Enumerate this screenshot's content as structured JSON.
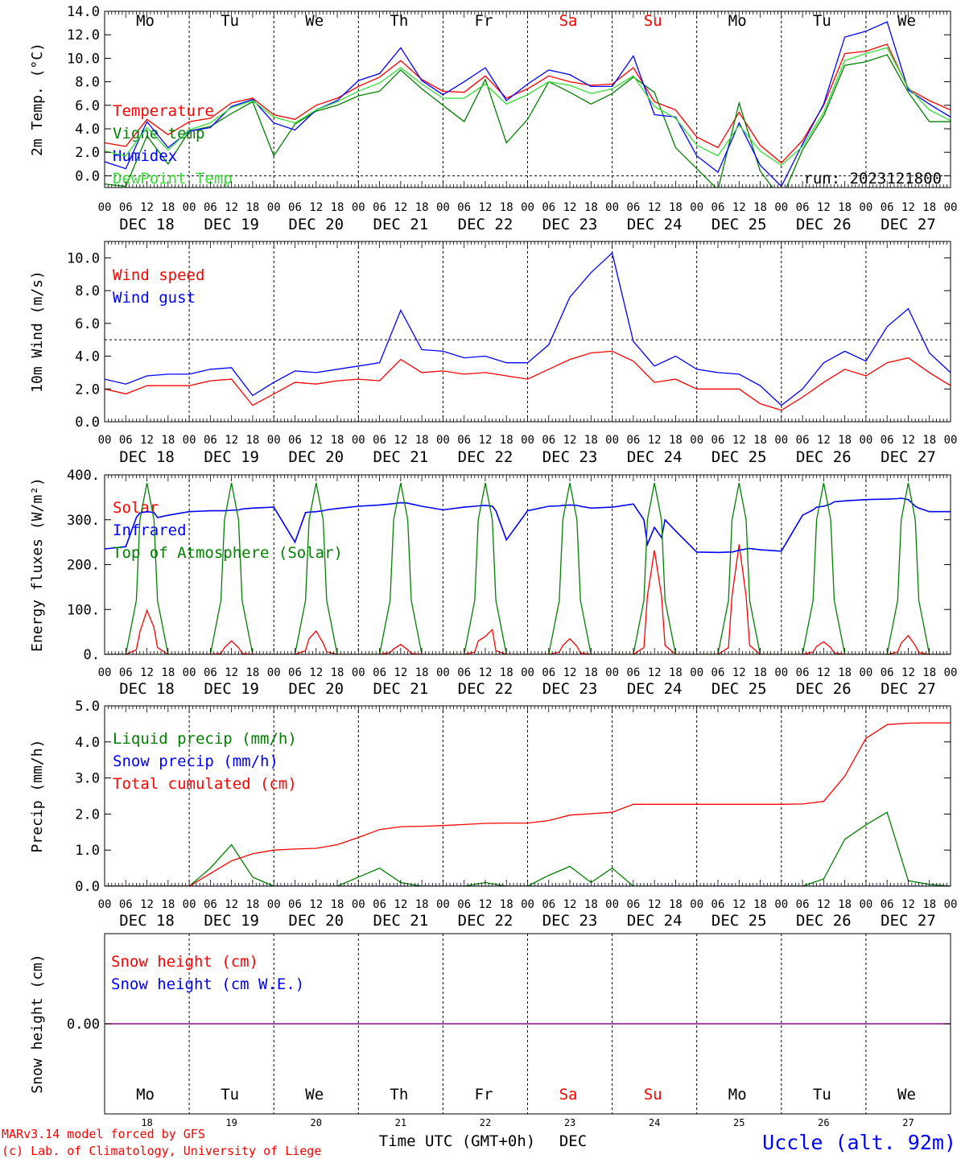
{
  "time_axis": {
    "hour_labels": [
      "00",
      "06",
      "12",
      "18",
      "00",
      "06",
      "12",
      "18",
      "00",
      "06",
      "12",
      "18",
      "00",
      "06",
      "12",
      "18",
      "00",
      "06",
      "12",
      "18",
      "00",
      "06",
      "12",
      "18",
      "00",
      "06",
      "12",
      "18",
      "00",
      "06",
      "12",
      "18",
      "00",
      "06",
      "12",
      "18",
      "00",
      "06",
      "12",
      "18",
      "00"
    ],
    "day_labels": [
      "DEC 18",
      "DEC 19",
      "DEC 20",
      "DEC 21",
      "DEC 22",
      "DEC 23",
      "DEC 24",
      "DEC 25",
      "DEC 26",
      "DEC 27"
    ],
    "weekdays": [
      "Mo",
      "Tu",
      "We",
      "Th",
      "Fr",
      "Sa",
      "Su",
      "Mo",
      "Tu",
      "We"
    ],
    "weekday_colors": [
      "#000000",
      "#000000",
      "#000000",
      "#000000",
      "#000000",
      "#ff0000",
      "#ff0000",
      "#000000",
      "#000000",
      "#000000"
    ],
    "day_numbers": [
      "18",
      "19",
      "20",
      "21",
      "22",
      "23",
      "24",
      "25",
      "26",
      "27"
    ],
    "xlabel": "Time UTC (GMT+0h)",
    "month": "DEC"
  },
  "run_label": "run: 2023121800",
  "footer": {
    "credit_1": "MARv3.14 model forced by GFS",
    "credit_2": "(c) Lab. of Climatology, University of Liege",
    "station": "Uccle (alt. 92m)"
  },
  "colors": {
    "red": "#ff0000",
    "green": "#008000",
    "blue": "#0000ff",
    "lightgreen": "#33dd33",
    "purple": "#800080"
  },
  "chart_data": [
    {
      "type": "line",
      "ylabel": "2m Temp. (°C)",
      "ylim": [
        -1,
        14
      ],
      "yticks": [
        "14.0",
        "12.0",
        "10.0",
        "8.0",
        "6.0",
        "4.0",
        "2.0",
        "0.0"
      ],
      "ytick_values": [
        14,
        12,
        10,
        8,
        6,
        4,
        2,
        0
      ],
      "reference_line": 0,
      "x_hours_from_dec18_00": [
        0,
        6,
        12,
        18,
        24,
        30,
        36,
        42,
        48,
        54,
        60,
        66,
        72,
        78,
        84,
        90,
        96,
        102,
        108,
        114,
        120,
        126,
        132,
        138,
        144,
        150,
        156,
        162,
        168,
        174,
        180,
        186,
        192,
        198,
        204,
        210,
        216,
        222,
        228,
        234,
        240
      ],
      "series": [
        {
          "name": "Temperature",
          "color": "#ff0000",
          "values": [
            2.8,
            2.5,
            4.8,
            3.5,
            4.6,
            4.9,
            6.2,
            6.6,
            5.2,
            4.8,
            6.0,
            6.6,
            7.6,
            8.4,
            9.8,
            8.2,
            7.2,
            7.1,
            8.5,
            6.6,
            7.4,
            8.5,
            8.0,
            7.7,
            7.8,
            9.2,
            6.3,
            5.6,
            3.3,
            2.4,
            5.4,
            2.6,
            1.1,
            3.0,
            6.0,
            10.4,
            10.6,
            11.2,
            7.4,
            6.4,
            5.6
          ]
        },
        {
          "name": "Vigne temp",
          "color": "#008000",
          "values": [
            -0.7,
            -0.9,
            3.4,
            1.0,
            3.8,
            4.2,
            5.3,
            6.3,
            1.7,
            4.4,
            5.5,
            6.0,
            6.8,
            7.2,
            9.0,
            7.4,
            6.0,
            4.6,
            8.2,
            2.8,
            4.8,
            8.0,
            7.1,
            6.1,
            7.0,
            8.4,
            7.1,
            2.4,
            0.6,
            -1.2,
            6.2,
            0.4,
            -2.0,
            2.2,
            5.1,
            9.4,
            9.7,
            10.3,
            7.1,
            4.6,
            4.6
          ]
        },
        {
          "name": "Humidex",
          "color": "#0000ff",
          "values": [
            1.2,
            0.6,
            4.6,
            2.4,
            3.8,
            4.1,
            5.9,
            6.5,
            4.5,
            3.9,
            5.6,
            6.4,
            8.1,
            8.7,
            10.9,
            8.1,
            6.9,
            8.0,
            9.2,
            6.4,
            7.8,
            9.0,
            8.6,
            7.6,
            7.6,
            10.2,
            5.2,
            5.0,
            1.7,
            0.3,
            4.5,
            0.9,
            -0.9,
            2.7,
            6.1,
            11.8,
            12.3,
            13.1,
            7.3,
            6.1,
            5.0
          ]
        },
        {
          "name": "DewPoint Temp",
          "color": "#33dd33",
          "values": [
            2.1,
            1.7,
            4.1,
            2.2,
            3.9,
            4.5,
            5.8,
            6.4,
            5.0,
            4.5,
            5.6,
            6.3,
            7.2,
            7.9,
            9.2,
            7.8,
            6.6,
            6.6,
            7.8,
            6.1,
            6.9,
            8.0,
            7.7,
            7.0,
            7.4,
            8.5,
            5.9,
            4.9,
            2.6,
            1.7,
            4.3,
            2.1,
            0.9,
            2.5,
            5.4,
            9.8,
            10.4,
            10.9,
            7.5,
            5.6,
            4.7
          ]
        }
      ]
    },
    {
      "type": "line",
      "ylabel": "10m Wind (m/s)",
      "ylim": [
        0,
        11
      ],
      "yticks": [
        "10.0",
        "8.0",
        "6.0",
        "4.0",
        "2.0",
        "0.0"
      ],
      "ytick_values": [
        10,
        8,
        6,
        4,
        2,
        0
      ],
      "reference_line": 5,
      "x_hours_from_dec18_00": [
        0,
        6,
        12,
        18,
        24,
        30,
        36,
        42,
        48,
        54,
        60,
        66,
        72,
        78,
        84,
        90,
        96,
        102,
        108,
        114,
        120,
        126,
        132,
        138,
        144,
        150,
        156,
        162,
        168,
        174,
        180,
        186,
        192,
        198,
        204,
        210,
        216,
        222,
        228,
        234,
        240
      ],
      "series": [
        {
          "name": "Wind speed",
          "color": "#ff0000",
          "values": [
            2.0,
            1.7,
            2.2,
            2.2,
            2.2,
            2.5,
            2.6,
            1.0,
            1.7,
            2.4,
            2.3,
            2.5,
            2.6,
            2.5,
            3.8,
            3.0,
            3.1,
            2.9,
            3.0,
            2.8,
            2.6,
            3.2,
            3.8,
            4.2,
            4.3,
            3.7,
            2.4,
            2.6,
            2.0,
            2.0,
            2.0,
            1.1,
            0.7,
            1.5,
            2.4,
            3.2,
            2.8,
            3.6,
            3.9,
            3.0,
            2.2
          ]
        },
        {
          "name": "Wind gust",
          "color": "#0000ff",
          "values": [
            2.6,
            2.3,
            2.8,
            2.9,
            2.9,
            3.2,
            3.3,
            1.6,
            2.4,
            3.1,
            3.0,
            3.2,
            3.4,
            3.6,
            6.8,
            4.4,
            4.3,
            3.9,
            4.0,
            3.6,
            3.6,
            4.7,
            7.6,
            9.1,
            10.3,
            4.9,
            3.4,
            4.0,
            3.2,
            3.0,
            2.9,
            2.2,
            1.0,
            2.0,
            3.6,
            4.3,
            3.7,
            5.8,
            6.9,
            4.2,
            3.0
          ]
        }
      ]
    },
    {
      "type": "line",
      "ylabel": "Energy fluxes (W/m²)",
      "ylim": [
        0,
        400
      ],
      "yticks": [
        "400.",
        "300.",
        "200.",
        "100.",
        "0."
      ],
      "ytick_values": [
        400,
        300,
        200,
        100,
        0
      ],
      "x_hours_from_dec18_00": [
        0,
        6,
        9,
        10,
        12,
        14,
        15,
        18,
        24,
        30,
        33,
        34,
        36,
        38,
        39,
        42,
        48,
        54,
        57,
        58,
        60,
        62,
        63,
        66,
        72,
        78,
        81,
        82,
        84,
        86,
        87,
        90,
        96,
        102,
        105,
        106,
        108,
        110,
        111,
        114,
        120,
        126,
        129,
        130,
        132,
        134,
        135,
        138,
        144,
        150,
        153,
        154,
        156,
        158,
        159,
        162,
        168,
        174,
        177,
        178,
        180,
        182,
        183,
        186,
        192,
        198,
        201,
        202,
        204,
        206,
        207,
        210,
        216,
        222,
        225,
        226,
        228,
        230,
        231,
        234,
        240
      ],
      "series": [
        {
          "name": "Solar",
          "color": "#ff0000",
          "values": [
            0,
            0,
            10,
            50,
            98,
            60,
            15,
            0,
            0,
            0,
            2,
            15,
            30,
            15,
            2,
            0,
            0,
            0,
            8,
            35,
            52,
            25,
            6,
            0,
            0,
            0,
            4,
            12,
            22,
            10,
            2,
            0,
            0,
            0,
            5,
            30,
            40,
            55,
            8,
            0,
            0,
            0,
            5,
            20,
            35,
            18,
            3,
            0,
            0,
            0,
            15,
            130,
            232,
            130,
            20,
            0,
            0,
            0,
            15,
            130,
            245,
            130,
            20,
            0,
            0,
            0,
            5,
            18,
            28,
            15,
            3,
            0,
            0,
            0,
            5,
            25,
            42,
            20,
            4,
            0,
            0
          ]
        },
        {
          "name": "Infrared",
          "color": "#0000ff",
          "values": [
            235,
            240,
            305,
            315,
            318,
            316,
            305,
            310,
            318,
            320,
            320,
            320,
            321,
            322,
            324,
            326,
            328,
            250,
            316,
            317,
            318,
            320,
            322,
            325,
            330,
            333,
            335,
            336,
            338,
            337,
            335,
            330,
            322,
            328,
            330,
            331,
            332,
            330,
            320,
            255,
            320,
            330,
            331,
            332,
            333,
            332,
            330,
            326,
            328,
            335,
            300,
            245,
            283,
            260,
            300,
            275,
            228,
            227,
            228,
            228,
            232,
            235,
            236,
            233,
            230,
            310,
            322,
            328,
            330,
            335,
            340,
            342,
            345,
            346,
            347,
            348,
            345,
            330,
            326,
            318,
            318
          ]
        },
        {
          "name": "Top of Atmosphere (Solar)",
          "color": "#008000",
          "values": [
            0,
            0,
            120,
            300,
            382,
            300,
            120,
            0,
            0,
            0,
            120,
            300,
            382,
            300,
            120,
            0,
            0,
            0,
            120,
            300,
            382,
            300,
            120,
            0,
            0,
            0,
            120,
            300,
            382,
            300,
            120,
            0,
            0,
            0,
            120,
            300,
            382,
            300,
            120,
            0,
            0,
            0,
            120,
            300,
            382,
            300,
            120,
            0,
            0,
            0,
            120,
            300,
            382,
            300,
            120,
            0,
            0,
            0,
            120,
            300,
            382,
            300,
            120,
            0,
            0,
            0,
            120,
            300,
            382,
            300,
            120,
            0,
            0,
            0,
            120,
            300,
            382,
            300,
            120,
            0,
            0
          ]
        }
      ]
    },
    {
      "type": "line",
      "ylabel": "Precip (mm/h)",
      "ylim": [
        0,
        5
      ],
      "yticks": [
        "5.0",
        "4.0",
        "3.0",
        "2.0",
        "1.0",
        "0.0"
      ],
      "ytick_values": [
        5,
        4,
        3,
        2,
        1,
        0
      ],
      "x_hours_from_dec18_00": [
        0,
        6,
        12,
        18,
        24,
        30,
        36,
        42,
        48,
        54,
        60,
        66,
        72,
        78,
        84,
        90,
        96,
        102,
        108,
        114,
        120,
        126,
        132,
        138,
        144,
        150,
        156,
        162,
        168,
        174,
        180,
        186,
        192,
        198,
        204,
        210,
        216,
        222,
        228,
        234,
        240
      ],
      "series": [
        {
          "name": "Liquid precip (mm/h)",
          "color": "#008000",
          "values": [
            0,
            0,
            0,
            0,
            0,
            0.5,
            1.15,
            0.25,
            0,
            0,
            0,
            0,
            0.25,
            0.5,
            0.1,
            0,
            0,
            0,
            0.1,
            0,
            0,
            0.3,
            0.55,
            0.1,
            0.5,
            0,
            0,
            0,
            0,
            0,
            0,
            0,
            0,
            0,
            0.2,
            1.3,
            1.7,
            2.05,
            0.15,
            0.05,
            0
          ]
        },
        {
          "name": "Snow precip (mm/h)",
          "color": "#0000ff",
          "values": [
            0,
            0,
            0,
            0,
            0,
            0,
            0,
            0,
            0,
            0,
            0,
            0,
            0,
            0,
            0,
            0,
            0,
            0,
            0,
            0,
            0,
            0,
            0,
            0,
            0,
            0,
            0,
            0,
            0,
            0,
            0,
            0,
            0,
            0,
            0,
            0,
            0,
            0,
            0,
            0,
            0
          ]
        },
        {
          "name": "Total cumulated (cm)",
          "color": "#ff0000",
          "values": [
            0,
            0,
            0,
            0,
            0,
            0.35,
            0.7,
            0.9,
            1.0,
            1.03,
            1.05,
            1.15,
            1.35,
            1.57,
            1.65,
            1.66,
            1.68,
            1.71,
            1.74,
            1.75,
            1.75,
            1.82,
            1.97,
            2.01,
            2.05,
            2.27,
            2.27,
            2.27,
            2.27,
            2.27,
            2.27,
            2.27,
            2.27,
            2.28,
            2.35,
            3.05,
            4.1,
            4.48,
            4.52,
            4.53,
            4.53
          ]
        }
      ]
    },
    {
      "type": "line",
      "ylabel": "Snow height (cm)",
      "ylim": [
        -1,
        1
      ],
      "yticks": [
        "0.00"
      ],
      "ytick_values": [
        0
      ],
      "x_hours_from_dec18_00": [
        0,
        240
      ],
      "series": [
        {
          "name": "Snow height (cm)",
          "color": "#ff0000",
          "values": [
            0,
            0
          ]
        },
        {
          "name": "Snow height (cm W.E.)",
          "color": "#0000ff",
          "values": [
            0,
            0
          ]
        }
      ]
    }
  ]
}
